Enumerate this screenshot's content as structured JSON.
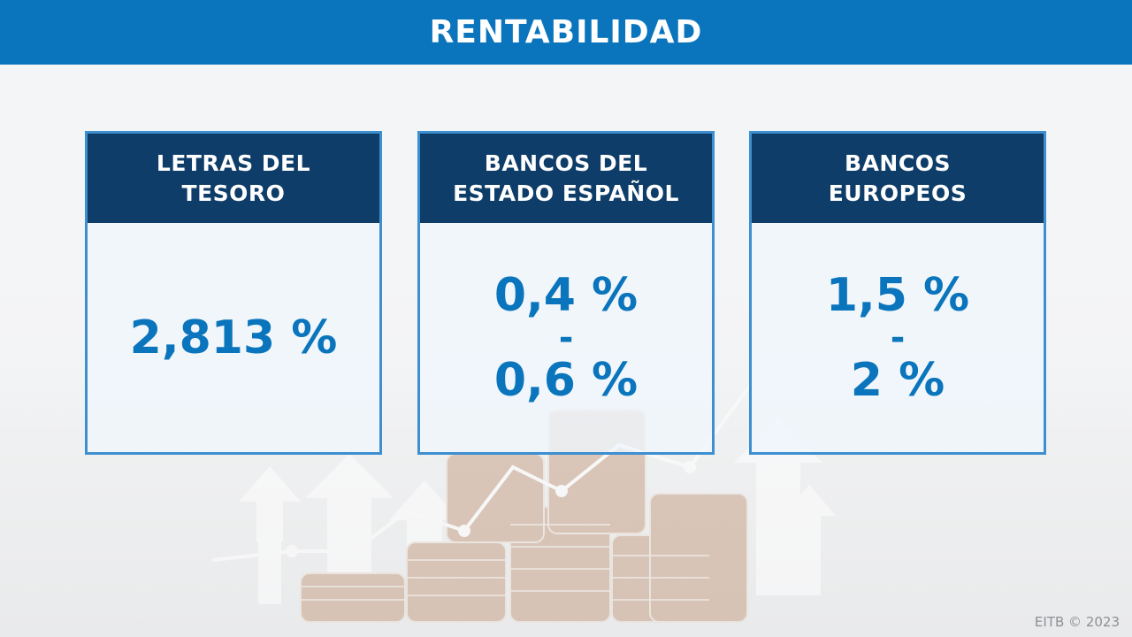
{
  "header": {
    "title": "RENTABILIDAD"
  },
  "cards": [
    {
      "title": "LETRAS DEL\nTESORO",
      "value": "2,813 %"
    },
    {
      "title": "BANCOS DEL\nESTADO ESPAÑOL",
      "value_high": "0,4 %",
      "separator": "-",
      "value_low": "0,6 %"
    },
    {
      "title": "BANCOS\nEUROPEOS",
      "value_high": "1,5 %",
      "separator": "-",
      "value_low": "2 %"
    }
  ],
  "watermark": "EITB © 2023",
  "colors": {
    "header": "#0a75bc",
    "card_head": "#0d3d68",
    "value": "#0a75bc",
    "card_border": "#3d8fd0"
  }
}
